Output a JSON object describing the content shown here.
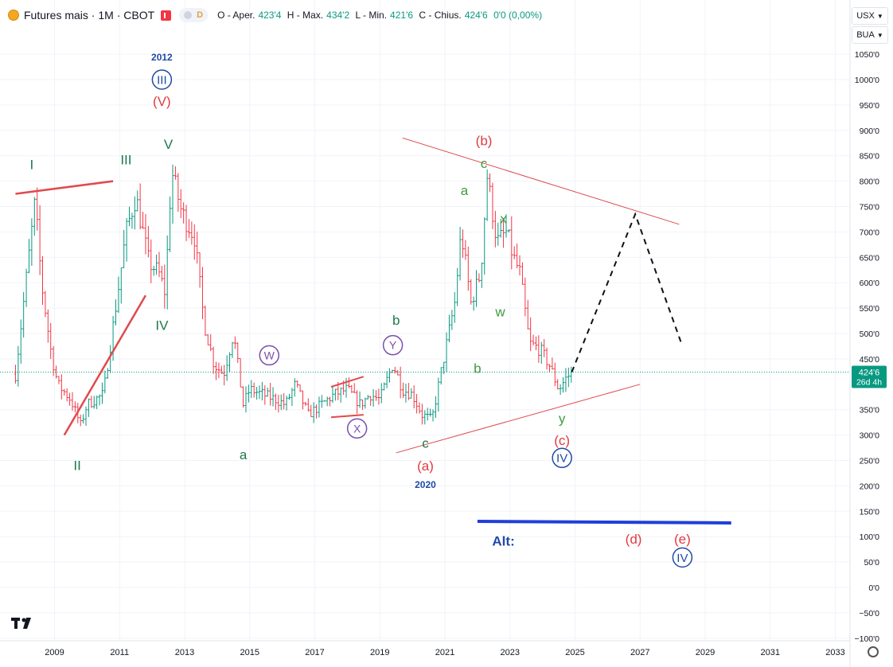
{
  "header": {
    "symbol": "Futures mais · 1M · CBOT",
    "pill_badge": "D",
    "ohlc": {
      "o_label": "O - Aper.",
      "o_value": "423'4",
      "h_label": "H - Max.",
      "h_value": "434'2",
      "l_label": "L - Min.",
      "l_value": "421'6",
      "c_label": "C - Chius.",
      "c_value": "424'6",
      "change": "0'0 (0,00%)"
    }
  },
  "right_panel": {
    "currency": "USX",
    "unit": "BUA"
  },
  "price_badge": {
    "price": "424'6",
    "countdown": "26d 4h"
  },
  "colors": {
    "up": "#089981",
    "down": "#f23645",
    "wave_red": "#e03a3e",
    "wave_green": "#1a7a4a",
    "wave_navy": "#1f4aa8",
    "wave_purple": "#7b4fb0",
    "line_red": "#e04a4e",
    "alt_blue": "#1f3fd8"
  },
  "chart_data": {
    "type": "candlestick",
    "ylim": [
      -100,
      1100
    ],
    "xlim": [
      2007.8,
      2034
    ],
    "y_ticks": [
      -100,
      -50,
      0,
      50,
      100,
      150,
      200,
      250,
      300,
      350,
      450,
      500,
      550,
      600,
      650,
      700,
      750,
      800,
      850,
      900,
      950,
      1000,
      1050
    ],
    "y_tick_labels": [
      "−100'0",
      "−50'0",
      "0'0",
      "50'0",
      "100'0",
      "150'0",
      "200'0",
      "250'0",
      "300'0",
      "350'0",
      "450'0",
      "500'0",
      "550'0",
      "600'0",
      "650'0",
      "700'0",
      "750'0",
      "800'0",
      "850'0",
      "900'0",
      "950'0",
      "1000'0",
      "1050'0"
    ],
    "x_ticks": [
      2009,
      2011,
      2013,
      2015,
      2017,
      2019,
      2021,
      2023,
      2025,
      2027,
      2029,
      2031,
      2033
    ],
    "x_tick_labels": [
      "2009",
      "2011",
      "2013",
      "2015",
      "2017",
      "2019",
      "2021",
      "2023",
      "2025",
      "2027",
      "2029",
      "2031",
      "2033"
    ],
    "price_path": [
      [
        2007.8,
        420
      ],
      [
        2008.4,
        760
      ],
      [
        2008.6,
        600
      ],
      [
        2008.9,
        460
      ],
      [
        2009.1,
        400
      ],
      [
        2009.5,
        370
      ],
      [
        2009.8,
        320
      ],
      [
        2010.0,
        360
      ],
      [
        2010.5,
        380
      ],
      [
        2010.9,
        560
      ],
      [
        2011.2,
        700
      ],
      [
        2011.5,
        770
      ],
      [
        2011.9,
        640
      ],
      [
        2012.2,
        620
      ],
      [
        2012.4,
        580
      ],
      [
        2012.6,
        820
      ],
      [
        2012.9,
        740
      ],
      [
        2013.3,
        690
      ],
      [
        2013.6,
        520
      ],
      [
        2013.9,
        440
      ],
      [
        2014.2,
        420
      ],
      [
        2014.5,
        500
      ],
      [
        2014.8,
        360
      ],
      [
        2015.0,
        390
      ],
      [
        2015.4,
        380
      ],
      [
        2015.8,
        370
      ],
      [
        2016.1,
        360
      ],
      [
        2016.4,
        400
      ],
      [
        2016.8,
        340
      ],
      [
        2017.2,
        360
      ],
      [
        2017.6,
        380
      ],
      [
        2018.0,
        390
      ],
      [
        2018.4,
        360
      ],
      [
        2018.7,
        380
      ],
      [
        2019.0,
        370
      ],
      [
        2019.4,
        440
      ],
      [
        2019.7,
        390
      ],
      [
        2020.0,
        380
      ],
      [
        2020.3,
        340
      ],
      [
        2020.6,
        330
      ],
      [
        2020.9,
        430
      ],
      [
        2021.3,
        560
      ],
      [
        2021.5,
        700
      ],
      [
        2021.8,
        560
      ],
      [
        2022.1,
        620
      ],
      [
        2022.3,
        810
      ],
      [
        2022.6,
        680
      ],
      [
        2022.9,
        700
      ],
      [
        2023.1,
        650
      ],
      [
        2023.3,
        620
      ],
      [
        2023.6,
        480
      ],
      [
        2023.9,
        470
      ],
      [
        2024.2,
        440
      ],
      [
        2024.5,
        390
      ],
      [
        2024.7,
        410
      ],
      [
        2024.9,
        424
      ]
    ],
    "projection": [
      [
        2024.9,
        424
      ],
      [
        2026.85,
        735
      ],
      [
        2028.3,
        475
      ]
    ],
    "trendlines": [
      {
        "from": [
          2007.8,
          775
        ],
        "to": [
          2010.8,
          800
        ]
      },
      {
        "from": [
          2009.3,
          300
        ],
        "to": [
          2011.8,
          575
        ]
      },
      {
        "from": [
          2017.5,
          395
        ],
        "to": [
          2018.5,
          415
        ]
      },
      {
        "from": [
          2017.5,
          335
        ],
        "to": [
          2018.5,
          340
        ]
      },
      {
        "from": [
          2019.7,
          885
        ],
        "to": [
          2028.2,
          715
        ]
      },
      {
        "from": [
          2019.5,
          265
        ],
        "to": [
          2027.0,
          400
        ]
      }
    ],
    "alt_line": {
      "from": [
        2022.0,
        130
      ],
      "to": [
        2029.8,
        127
      ]
    },
    "wave_labels": [
      {
        "text": "2012",
        "x": 2012.3,
        "y": 1044,
        "color": "navy",
        "small": true
      },
      {
        "text": "III",
        "x": 2012.3,
        "y": 1000,
        "color": "navy",
        "circle": true
      },
      {
        "text": "(V)",
        "x": 2012.3,
        "y": 958,
        "color": "red"
      },
      {
        "text": "V",
        "x": 2012.5,
        "y": 873,
        "color": "green"
      },
      {
        "text": "I",
        "x": 2008.3,
        "y": 833,
        "color": "green"
      },
      {
        "text": "III",
        "x": 2011.2,
        "y": 843,
        "color": "green"
      },
      {
        "text": "IV",
        "x": 2012.3,
        "y": 517,
        "color": "green"
      },
      {
        "text": "II",
        "x": 2009.7,
        "y": 241,
        "color": "green"
      },
      {
        "text": "a",
        "x": 2014.8,
        "y": 262,
        "color": "green"
      },
      {
        "text": "W",
        "x": 2015.6,
        "y": 457,
        "color": "purple",
        "circle": true
      },
      {
        "text": "X",
        "x": 2018.3,
        "y": 313,
        "color": "purple",
        "circle": true
      },
      {
        "text": "Y",
        "x": 2019.4,
        "y": 477,
        "color": "purple",
        "circle": true
      },
      {
        "text": "b",
        "x": 2019.5,
        "y": 527,
        "color": "green"
      },
      {
        "text": "c",
        "x": 2020.4,
        "y": 285,
        "color": "green"
      },
      {
        "text": "(a)",
        "x": 2020.4,
        "y": 240,
        "color": "red"
      },
      {
        "text": "2020",
        "x": 2020.4,
        "y": 203,
        "color": "navy",
        "small": true
      },
      {
        "text": "a",
        "x": 2021.6,
        "y": 782,
        "color": "green-light"
      },
      {
        "text": "b",
        "x": 2022.0,
        "y": 432,
        "color": "green-light"
      },
      {
        "text": "c",
        "x": 2022.2,
        "y": 836,
        "color": "green-light"
      },
      {
        "text": "(b)",
        "x": 2022.2,
        "y": 880,
        "color": "red"
      },
      {
        "text": "x",
        "x": 2022.8,
        "y": 727,
        "color": "green-light"
      },
      {
        "text": "w",
        "x": 2022.7,
        "y": 543,
        "color": "green-light"
      },
      {
        "text": "y",
        "x": 2024.6,
        "y": 333,
        "color": "green-light"
      },
      {
        "text": "(c)",
        "x": 2024.6,
        "y": 290,
        "color": "red"
      },
      {
        "text": "IV",
        "x": 2024.6,
        "y": 255,
        "color": "navy",
        "circle": true
      },
      {
        "text": "Alt:",
        "x": 2022.8,
        "y": 92,
        "color": "navy-bold"
      },
      {
        "text": "(d)",
        "x": 2026.8,
        "y": 96,
        "color": "red"
      },
      {
        "text": "(e)",
        "x": 2028.3,
        "y": 96,
        "color": "red"
      },
      {
        "text": "IV",
        "x": 2028.3,
        "y": 59,
        "color": "navy",
        "circle": true
      }
    ]
  }
}
